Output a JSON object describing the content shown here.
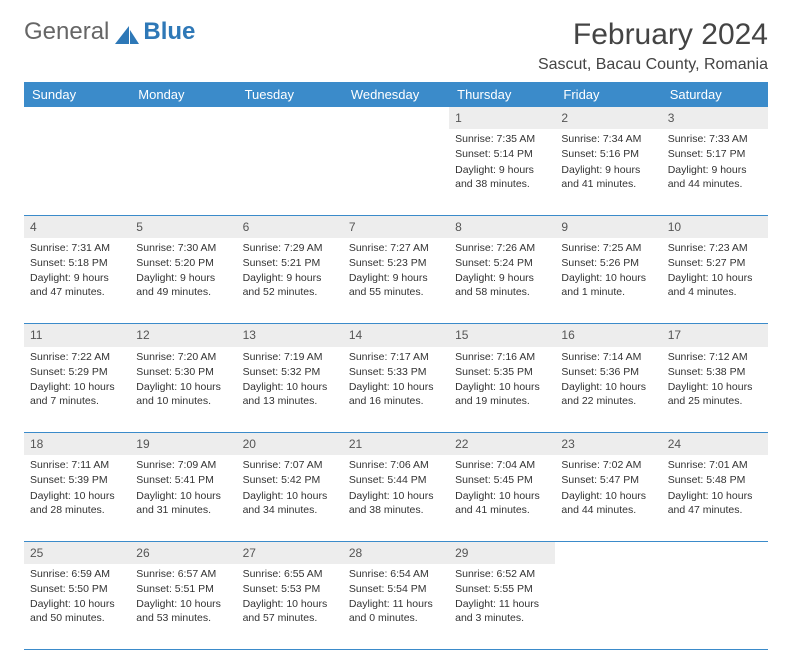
{
  "logo": {
    "text1": "General",
    "text2": "Blue"
  },
  "title": {
    "month": "February 2024",
    "location": "Sascut, Bacau County, Romania"
  },
  "colors": {
    "header_bg": "#3b8bca",
    "header_text": "#ffffff",
    "daynum_bg": "#ededed",
    "border": "#3b8bca",
    "text": "#333333",
    "logo_blue": "#2e78b7"
  },
  "dayHeaders": [
    "Sunday",
    "Monday",
    "Tuesday",
    "Wednesday",
    "Thursday",
    "Friday",
    "Saturday"
  ],
  "weeks": [
    [
      null,
      null,
      null,
      null,
      {
        "n": "1",
        "sr": "7:35 AM",
        "ss": "5:14 PM",
        "dl": "9 hours and 38 minutes."
      },
      {
        "n": "2",
        "sr": "7:34 AM",
        "ss": "5:16 PM",
        "dl": "9 hours and 41 minutes."
      },
      {
        "n": "3",
        "sr": "7:33 AM",
        "ss": "5:17 PM",
        "dl": "9 hours and 44 minutes."
      }
    ],
    [
      {
        "n": "4",
        "sr": "7:31 AM",
        "ss": "5:18 PM",
        "dl": "9 hours and 47 minutes."
      },
      {
        "n": "5",
        "sr": "7:30 AM",
        "ss": "5:20 PM",
        "dl": "9 hours and 49 minutes."
      },
      {
        "n": "6",
        "sr": "7:29 AM",
        "ss": "5:21 PM",
        "dl": "9 hours and 52 minutes."
      },
      {
        "n": "7",
        "sr": "7:27 AM",
        "ss": "5:23 PM",
        "dl": "9 hours and 55 minutes."
      },
      {
        "n": "8",
        "sr": "7:26 AM",
        "ss": "5:24 PM",
        "dl": "9 hours and 58 minutes."
      },
      {
        "n": "9",
        "sr": "7:25 AM",
        "ss": "5:26 PM",
        "dl": "10 hours and 1 minute."
      },
      {
        "n": "10",
        "sr": "7:23 AM",
        "ss": "5:27 PM",
        "dl": "10 hours and 4 minutes."
      }
    ],
    [
      {
        "n": "11",
        "sr": "7:22 AM",
        "ss": "5:29 PM",
        "dl": "10 hours and 7 minutes."
      },
      {
        "n": "12",
        "sr": "7:20 AM",
        "ss": "5:30 PM",
        "dl": "10 hours and 10 minutes."
      },
      {
        "n": "13",
        "sr": "7:19 AM",
        "ss": "5:32 PM",
        "dl": "10 hours and 13 minutes."
      },
      {
        "n": "14",
        "sr": "7:17 AM",
        "ss": "5:33 PM",
        "dl": "10 hours and 16 minutes."
      },
      {
        "n": "15",
        "sr": "7:16 AM",
        "ss": "5:35 PM",
        "dl": "10 hours and 19 minutes."
      },
      {
        "n": "16",
        "sr": "7:14 AM",
        "ss": "5:36 PM",
        "dl": "10 hours and 22 minutes."
      },
      {
        "n": "17",
        "sr": "7:12 AM",
        "ss": "5:38 PM",
        "dl": "10 hours and 25 minutes."
      }
    ],
    [
      {
        "n": "18",
        "sr": "7:11 AM",
        "ss": "5:39 PM",
        "dl": "10 hours and 28 minutes."
      },
      {
        "n": "19",
        "sr": "7:09 AM",
        "ss": "5:41 PM",
        "dl": "10 hours and 31 minutes."
      },
      {
        "n": "20",
        "sr": "7:07 AM",
        "ss": "5:42 PM",
        "dl": "10 hours and 34 minutes."
      },
      {
        "n": "21",
        "sr": "7:06 AM",
        "ss": "5:44 PM",
        "dl": "10 hours and 38 minutes."
      },
      {
        "n": "22",
        "sr": "7:04 AM",
        "ss": "5:45 PM",
        "dl": "10 hours and 41 minutes."
      },
      {
        "n": "23",
        "sr": "7:02 AM",
        "ss": "5:47 PM",
        "dl": "10 hours and 44 minutes."
      },
      {
        "n": "24",
        "sr": "7:01 AM",
        "ss": "5:48 PM",
        "dl": "10 hours and 47 minutes."
      }
    ],
    [
      {
        "n": "25",
        "sr": "6:59 AM",
        "ss": "5:50 PM",
        "dl": "10 hours and 50 minutes."
      },
      {
        "n": "26",
        "sr": "6:57 AM",
        "ss": "5:51 PM",
        "dl": "10 hours and 53 minutes."
      },
      {
        "n": "27",
        "sr": "6:55 AM",
        "ss": "5:53 PM",
        "dl": "10 hours and 57 minutes."
      },
      {
        "n": "28",
        "sr": "6:54 AM",
        "ss": "5:54 PM",
        "dl": "11 hours and 0 minutes."
      },
      {
        "n": "29",
        "sr": "6:52 AM",
        "ss": "5:55 PM",
        "dl": "11 hours and 3 minutes."
      },
      null,
      null
    ]
  ],
  "labels": {
    "sunrise": "Sunrise: ",
    "sunset": "Sunset: ",
    "daylight": "Daylight: "
  }
}
